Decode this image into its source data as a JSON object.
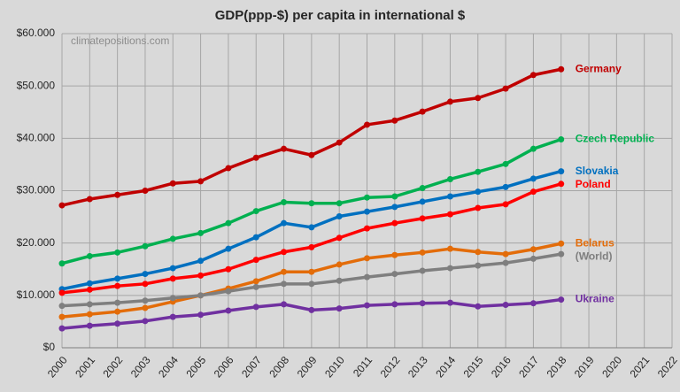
{
  "chart_data": {
    "type": "line",
    "title": "GDP(ppp-$) per capita in international $",
    "watermark": "climatepositions.com",
    "x": [
      2000,
      2001,
      2002,
      2003,
      2004,
      2005,
      2006,
      2007,
      2008,
      2009,
      2010,
      2011,
      2012,
      2013,
      2014,
      2015,
      2016,
      2017,
      2018
    ],
    "xlim": [
      2000,
      2022
    ],
    "xticks": [
      2000,
      2001,
      2002,
      2003,
      2004,
      2005,
      2006,
      2007,
      2008,
      2009,
      2010,
      2011,
      2012,
      2013,
      2014,
      2015,
      2016,
      2017,
      2018,
      2019,
      2020,
      2021,
      2022
    ],
    "ylim": [
      0,
      60000
    ],
    "yticks": [
      {
        "value": 0,
        "label": "$0"
      },
      {
        "value": 10000,
        "label": "$10.000"
      },
      {
        "value": 20000,
        "label": "$20.000"
      },
      {
        "value": 30000,
        "label": "$30.000"
      },
      {
        "value": 40000,
        "label": "$40.000"
      },
      {
        "value": 50000,
        "label": "$50.000"
      },
      {
        "value": 60000,
        "label": "$60.000"
      }
    ],
    "grid": true,
    "series": [
      {
        "name": "Germany",
        "color": "#c00000",
        "values": [
          27200,
          28400,
          29200,
          30000,
          31400,
          31800,
          34300,
          36300,
          38000,
          36800,
          39200,
          42600,
          43400,
          45100,
          47000,
          47700,
          49500,
          52100,
          53200
        ]
      },
      {
        "name": "Czech Republic",
        "color": "#00b050",
        "values": [
          16100,
          17500,
          18200,
          19400,
          20800,
          21900,
          23800,
          26100,
          27800,
          27600,
          27600,
          28700,
          28900,
          30500,
          32200,
          33600,
          35100,
          38000,
          39800
        ]
      },
      {
        "name": "Slovakia",
        "color": "#0070c0",
        "values": [
          11200,
          12300,
          13200,
          14100,
          15200,
          16600,
          18900,
          21100,
          23800,
          23000,
          25100,
          26000,
          26900,
          27900,
          28900,
          29800,
          30700,
          32300,
          33700
        ]
      },
      {
        "name": "Poland",
        "color": "#ff0000",
        "values": [
          10500,
          11100,
          11800,
          12200,
          13200,
          13800,
          15000,
          16800,
          18300,
          19200,
          21000,
          22800,
          23800,
          24700,
          25500,
          26700,
          27400,
          29800,
          31300
        ]
      },
      {
        "name": "Belarus",
        "color": "#e36c09",
        "values": [
          5900,
          6400,
          6900,
          7600,
          8800,
          10000,
          11300,
          12700,
          14500,
          14500,
          15900,
          17100,
          17700,
          18200,
          18900,
          18300,
          17900,
          18800,
          19900
        ]
      },
      {
        "name": "(World)",
        "color": "#7f7f7f",
        "values": [
          8000,
          8300,
          8600,
          9000,
          9500,
          10000,
          10800,
          11600,
          12200,
          12200,
          12800,
          13500,
          14100,
          14700,
          15200,
          15700,
          16200,
          17000,
          17900
        ]
      },
      {
        "name": "Ukraine",
        "color": "#7030a0",
        "values": [
          3700,
          4200,
          4600,
          5100,
          5900,
          6300,
          7100,
          7800,
          8300,
          7200,
          7500,
          8100,
          8300,
          8500,
          8600,
          7900,
          8200,
          8500,
          9200
        ]
      }
    ]
  }
}
